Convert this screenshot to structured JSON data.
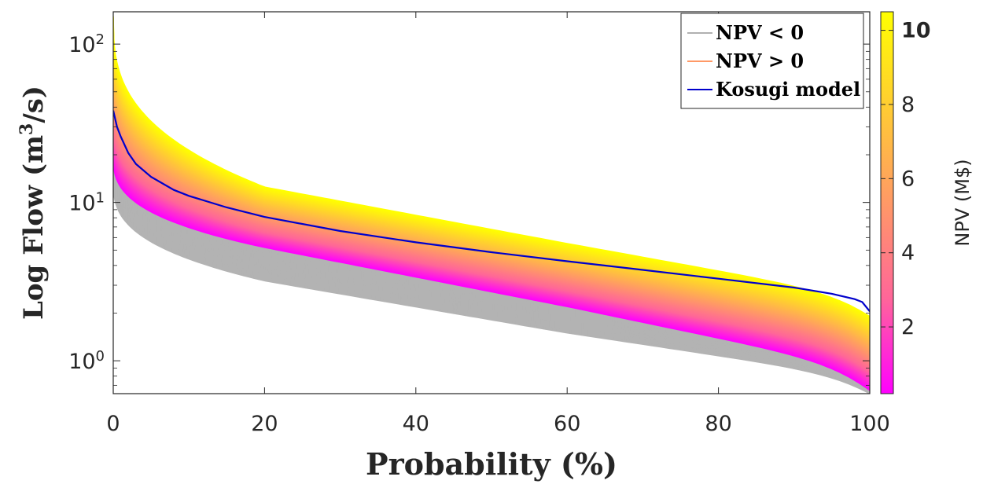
{
  "chart_data": {
    "type": "line",
    "xlabel": "Probability (%)",
    "ylabel": "Log Flow (m³/s)",
    "ylabel_unit_sup": "3",
    "xlim": [
      0,
      100
    ],
    "ylim": [
      0.62,
      160
    ],
    "yscale": "log",
    "xticks": [
      0,
      20,
      40,
      60,
      80,
      100
    ],
    "xtick_labels": [
      "0",
      "20",
      "40",
      "60",
      "80",
      "100"
    ],
    "yticks": [
      1,
      10,
      100
    ],
    "ytick_bases": [
      "10",
      "10",
      "10"
    ],
    "ytick_exps": [
      "0",
      "1",
      "2"
    ],
    "grid": false,
    "legend_position": "top-right",
    "legend": [
      {
        "label": "NPV < 0",
        "color": "#b0b0b0"
      },
      {
        "label": "NPV > 0",
        "color": "#ff9966"
      },
      {
        "label": "Kosugi model",
        "color": "#0000cc"
      }
    ],
    "series": [
      {
        "name": "Kosugi model",
        "color": "#0000cc",
        "x": [
          0,
          0.5,
          1,
          2,
          3,
          5,
          8,
          10,
          15,
          20,
          30,
          40,
          50,
          60,
          70,
          80,
          90,
          95,
          98,
          99,
          100
        ],
        "y": [
          38,
          30,
          26,
          20.5,
          17.5,
          14.5,
          12,
          11,
          9.3,
          8.1,
          6.6,
          5.6,
          4.85,
          4.25,
          3.75,
          3.3,
          2.9,
          2.65,
          2.45,
          2.35,
          2.05
        ]
      }
    ],
    "ensemble": {
      "negative_npv": {
        "color": "#b3b3b3",
        "band_start": [
          14,
          26
        ],
        "band_at_20": [
          3.2,
          6.0
        ],
        "band_at_60": [
          1.5,
          2.8
        ],
        "band_end": [
          0.62,
          0.95
        ]
      },
      "positive_npv": {
        "band_start": [
          20,
          150
        ],
        "band_at_20": [
          5.2,
          12.5
        ],
        "band_at_60": [
          2.2,
          5.5
        ],
        "band_end": [
          0.65,
          1.9
        ]
      }
    },
    "colorbar": {
      "label": "NPV (M$)",
      "range": [
        0.2,
        10.5
      ],
      "ticks": [
        "2",
        "4",
        "6",
        "8",
        "10"
      ],
      "tick_values": [
        2,
        4,
        6,
        8,
        10
      ],
      "highlight_tick": "10",
      "highlight_color": "#0000cc",
      "colors": [
        "#ff00ff",
        "#ff6699",
        "#ff9966",
        "#ffcc33",
        "#ffff00"
      ]
    }
  }
}
